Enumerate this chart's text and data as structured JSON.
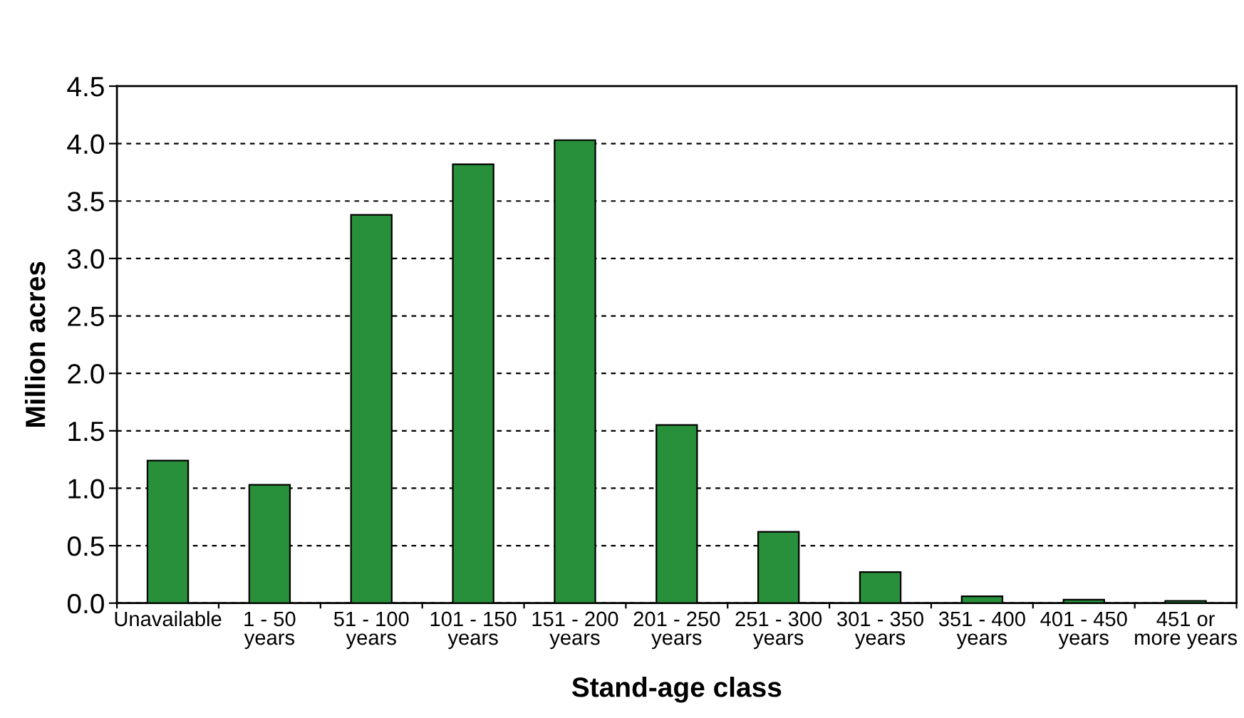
{
  "chart_data": {
    "type": "bar",
    "xlabel": "Stand-age class",
    "ylabel": "Million acres",
    "categories": [
      "Unavailable",
      "1 - 50\nyears",
      "51 - 100\nyears",
      "101 - 150\nyears",
      "151 - 200\nyears",
      "201 - 250\nyears",
      "251 - 300\nyears",
      "301 - 350\nyears",
      "351 - 400\nyears",
      "401 - 450\nyears",
      "451 or\nmore years"
    ],
    "values": [
      1.24,
      1.03,
      3.38,
      3.82,
      4.03,
      1.55,
      0.62,
      0.27,
      0.06,
      0.03,
      0.02
    ],
    "color": "#28903a",
    "ylim": [
      0,
      4.5
    ],
    "yticks": [
      {
        "value": 0,
        "label": "0.0"
      },
      {
        "value": 0.5,
        "label": "0.5"
      },
      {
        "value": 1,
        "label": "1.0"
      },
      {
        "value": 1.5,
        "label": "1.5"
      },
      {
        "value": 2,
        "label": "2.0"
      },
      {
        "value": 2.5,
        "label": "2.5"
      },
      {
        "value": 3,
        "label": "3.0"
      },
      {
        "value": 3.5,
        "label": "3.5"
      },
      {
        "value": 4,
        "label": "4.0"
      },
      {
        "value": 4.5,
        "label": "4.5"
      }
    ],
    "grid": "y"
  }
}
